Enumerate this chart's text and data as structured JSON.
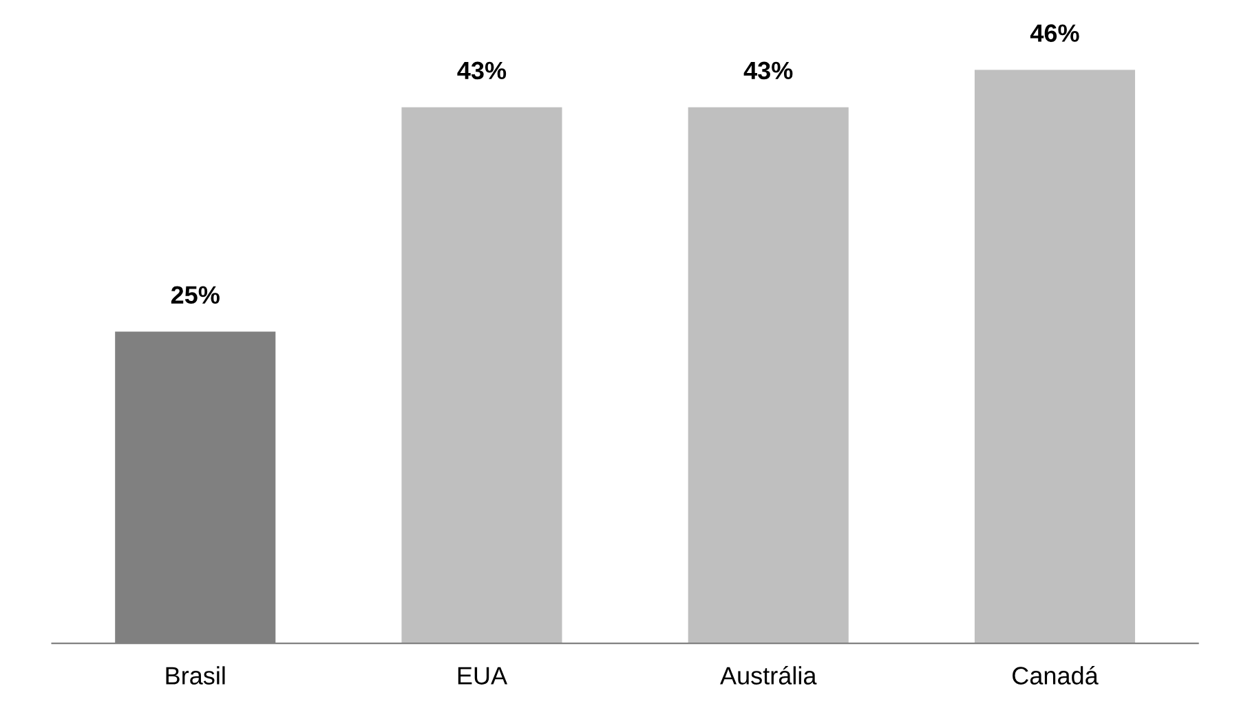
{
  "chart_data": {
    "type": "bar",
    "categories": [
      "Brasil",
      "EUA",
      "Austrália",
      "Canadá"
    ],
    "values": [
      25,
      43,
      43,
      46
    ],
    "colors": [
      "#808080",
      "#bfbfbf",
      "#bfbfbf",
      "#bfbfbf"
    ],
    "value_labels": [
      "25%",
      "43%",
      "43%",
      "46%"
    ],
    "grid": false,
    "legend": false
  }
}
